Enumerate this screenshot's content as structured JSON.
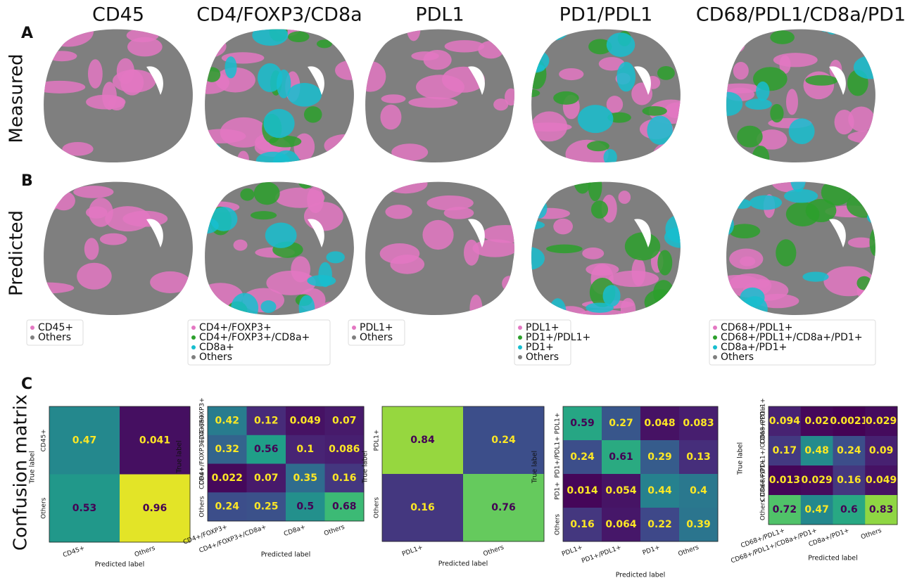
{
  "columns": [
    "CD45",
    "CD4/FOXP3/CD8a",
    "PDL1",
    "PD1/PDL1",
    "CD68/PDL1/CD8a/PD1"
  ],
  "rows": [
    "Measured",
    "Predicted"
  ],
  "panel_letters": [
    "A",
    "B",
    "C"
  ],
  "confusion_title": "Confusion matrix",
  "legends": [
    [
      {
        "label": "CD45+",
        "color": "#e377c2"
      },
      {
        "label": "Others",
        "color": "#7f7f7f"
      }
    ],
    [
      {
        "label": "CD4+/FOXP3+",
        "color": "#e377c2"
      },
      {
        "label": "CD4+/FOXP3+/CD8a+",
        "color": "#2ca02c"
      },
      {
        "label": "CD8a+",
        "color": "#17becf"
      },
      {
        "label": "Others",
        "color": "#7f7f7f"
      }
    ],
    [
      {
        "label": "PDL1+",
        "color": "#e377c2"
      },
      {
        "label": "Others",
        "color": "#7f7f7f"
      }
    ],
    [
      {
        "label": "PDL1+",
        "color": "#e377c2"
      },
      {
        "label": "PD1+/PDL1+",
        "color": "#2ca02c"
      },
      {
        "label": "PD1+",
        "color": "#17becf"
      },
      {
        "label": "Others",
        "color": "#7f7f7f"
      }
    ],
    [
      {
        "label": "CD68+/PDL1+",
        "color": "#e377c2"
      },
      {
        "label": "CD68+/PDL1+/CD8a+/PD1+",
        "color": "#2ca02c"
      },
      {
        "label": "CD8a+/PD1+",
        "color": "#17becf"
      },
      {
        "label": "Others",
        "color": "#7f7f7f"
      }
    ]
  ],
  "chart_data": [
    {
      "type": "heatmap",
      "categories": [
        "CD45+",
        "Others"
      ],
      "values": [
        [
          0.47,
          0.041
        ],
        [
          0.53,
          0.96
        ]
      ],
      "vlim": [
        0,
        1
      ],
      "x_label": "Predicted label",
      "y_label": "True label"
    },
    {
      "type": "heatmap",
      "categories": [
        "CD4+/FOXP3+",
        "CD4+/FOXP3+/CD8a+",
        "CD8a+",
        "Others"
      ],
      "values": [
        [
          0.42,
          0.12,
          0.049,
          0.07
        ],
        [
          0.32,
          0.56,
          0.1,
          0.086
        ],
        [
          0.022,
          0.07,
          0.35,
          0.16
        ],
        [
          0.24,
          0.25,
          0.5,
          0.68
        ]
      ],
      "vlim": [
        0,
        1
      ],
      "x_label": "Predicted label",
      "y_label": "True label"
    },
    {
      "type": "heatmap",
      "categories": [
        "PDL1+",
        "Others"
      ],
      "values": [
        [
          0.84,
          0.24
        ],
        [
          0.16,
          0.76
        ]
      ],
      "vlim": [
        0,
        1
      ],
      "x_label": "Predicted label",
      "y_label": "True label"
    },
    {
      "type": "heatmap",
      "categories": [
        "PDL1+",
        "PD1+/PDL1+",
        "PD1+",
        "Others"
      ],
      "values": [
        [
          0.59,
          0.27,
          0.048,
          0.083
        ],
        [
          0.24,
          0.61,
          0.29,
          0.13
        ],
        [
          0.014,
          0.054,
          0.44,
          0.4
        ],
        [
          0.16,
          0.064,
          0.22,
          0.39
        ]
      ],
      "vlim": [
        0,
        1
      ],
      "x_label": "Predicted label",
      "y_label": "True label"
    },
    {
      "type": "heatmap",
      "categories": [
        "CD68+/PDL1+",
        "CD68+/PDL1+/CD8a+/PD1+",
        "CD8a+/PD1+",
        "Others"
      ],
      "values": [
        [
          0.094,
          0.02,
          0.0021,
          0.029
        ],
        [
          0.17,
          0.48,
          0.24,
          0.09
        ],
        [
          0.013,
          0.029,
          0.16,
          0.049
        ],
        [
          0.72,
          0.47,
          0.6,
          0.83
        ]
      ],
      "vlim": [
        0,
        1
      ],
      "x_label": "Predicted label",
      "y_label": "True label"
    }
  ]
}
